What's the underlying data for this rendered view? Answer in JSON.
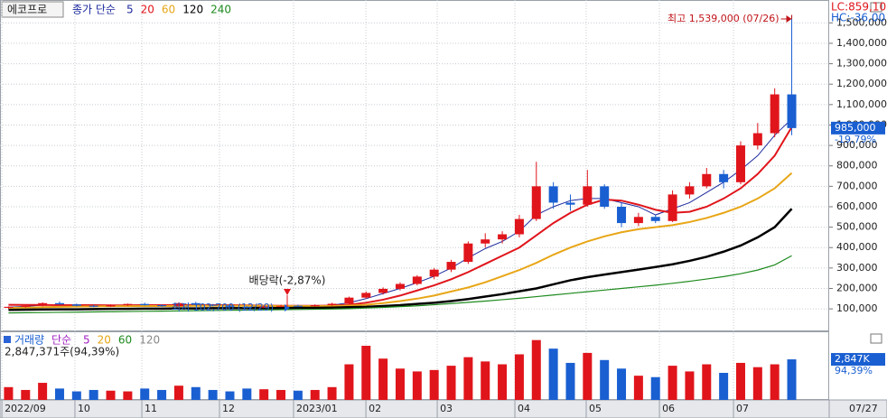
{
  "stock_name": "에코프로",
  "chart_data": [
    {
      "type": "candlestick",
      "legend_prefix": "종가 단순",
      "up_color": "#e0151b",
      "down_color": "#1a5fd1",
      "x": [
        0,
        1,
        2,
        3,
        4,
        5,
        6,
        7,
        8,
        9,
        10,
        11,
        12,
        13,
        14,
        15,
        16,
        17,
        18,
        19,
        20,
        21,
        22,
        23,
        24,
        25,
        26,
        27,
        28,
        29,
        30,
        31,
        32,
        33,
        34,
        35,
        36,
        37,
        38,
        39,
        40,
        41,
        42,
        43,
        44,
        45,
        46
      ],
      "open": [
        105000,
        110000,
        115000,
        128000,
        122000,
        115000,
        112000,
        118000,
        124000,
        118000,
        113000,
        128000,
        120000,
        116000,
        110000,
        106000,
        112000,
        115000,
        113000,
        118000,
        125000,
        155000,
        178000,
        198000,
        222000,
        258000,
        292000,
        330000,
        420000,
        440000,
        465000,
        540000,
        700000,
        620000,
        610000,
        700000,
        600000,
        520000,
        550000,
        530000,
        660000,
        700000,
        760000,
        720000,
        900000,
        960000,
        1150000
      ],
      "high": [
        112000,
        118000,
        132000,
        136000,
        126000,
        120000,
        122000,
        126000,
        130000,
        122000,
        132000,
        134000,
        124000,
        120000,
        114000,
        116000,
        120000,
        120000,
        122000,
        130000,
        160000,
        185000,
        205000,
        230000,
        265000,
        300000,
        340000,
        430000,
        470000,
        480000,
        560000,
        820000,
        720000,
        660000,
        780000,
        710000,
        620000,
        570000,
        560000,
        680000,
        720000,
        790000,
        780000,
        920000,
        1010000,
        1180000,
        1539000
      ],
      "low": [
        100000,
        106000,
        112000,
        120000,
        112000,
        108000,
        110000,
        114000,
        116000,
        110000,
        112000,
        118000,
        112000,
        108000,
        103000,
        104000,
        108000,
        110000,
        111000,
        115000,
        122000,
        150000,
        170000,
        190000,
        215000,
        245000,
        280000,
        320000,
        400000,
        420000,
        450000,
        530000,
        590000,
        580000,
        600000,
        590000,
        500000,
        505000,
        520000,
        525000,
        640000,
        690000,
        690000,
        710000,
        880000,
        940000,
        950000
      ],
      "close": [
        110000,
        115000,
        128000,
        122000,
        115000,
        112000,
        118000,
        124000,
        118000,
        113000,
        128000,
        120000,
        116000,
        110000,
        106000,
        112000,
        115000,
        113000,
        118000,
        125000,
        155000,
        178000,
        198000,
        222000,
        258000,
        292000,
        330000,
        420000,
        440000,
        465000,
        540000,
        700000,
        620000,
        610000,
        700000,
        600000,
        520000,
        550000,
        530000,
        660000,
        700000,
        760000,
        720000,
        900000,
        960000,
        1150000,
        985000
      ],
      "series": [
        {
          "name": "5",
          "color": "#1d2a9e",
          "width": 1,
          "values": [
            108000,
            112000,
            118000,
            120000,
            120000,
            118000,
            117000,
            118000,
            120000,
            119000,
            120000,
            122000,
            120000,
            117000,
            113000,
            110000,
            110000,
            112000,
            114000,
            118000,
            130000,
            150000,
            175000,
            200000,
            228000,
            260000,
            300000,
            350000,
            395000,
            430000,
            480000,
            560000,
            600000,
            630000,
            640000,
            640000,
            620000,
            600000,
            560000,
            590000,
            620000,
            670000,
            720000,
            780000,
            850000,
            950000,
            1030000
          ]
        },
        {
          "name": "20",
          "color": "#e0151b",
          "width": 2,
          "values": [
            120000,
            119000,
            119000,
            118000,
            118000,
            118000,
            117000,
            117000,
            118000,
            118000,
            118000,
            118000,
            118000,
            118000,
            117000,
            116000,
            115000,
            115000,
            115000,
            116000,
            120000,
            130000,
            145000,
            165000,
            190000,
            215000,
            245000,
            280000,
            320000,
            360000,
            400000,
            460000,
            520000,
            570000,
            610000,
            635000,
            630000,
            610000,
            585000,
            570000,
            575000,
            600000,
            640000,
            690000,
            760000,
            850000,
            990000
          ]
        },
        {
          "name": "60",
          "color": "#e8a617",
          "width": 2,
          "values": [
            105000,
            106000,
            108000,
            110000,
            111000,
            112000,
            113000,
            113000,
            114000,
            114000,
            114000,
            115000,
            115000,
            115000,
            115000,
            115000,
            114000,
            114000,
            114000,
            114000,
            116000,
            120000,
            128000,
            138000,
            150000,
            165000,
            185000,
            205000,
            230000,
            260000,
            290000,
            325000,
            365000,
            400000,
            430000,
            455000,
            475000,
            490000,
            500000,
            510000,
            525000,
            545000,
            570000,
            600000,
            640000,
            690000,
            765000
          ]
        },
        {
          "name": "120",
          "color": "#000000",
          "width": 2.5,
          "values": [
            95000,
            96000,
            97000,
            98000,
            98000,
            99000,
            100000,
            100000,
            101000,
            101000,
            102000,
            102000,
            103000,
            103000,
            104000,
            104000,
            104000,
            105000,
            105000,
            106000,
            108000,
            110000,
            114000,
            118000,
            124000,
            130000,
            138000,
            148000,
            160000,
            172000,
            186000,
            200000,
            220000,
            240000,
            255000,
            268000,
            280000,
            292000,
            305000,
            318000,
            335000,
            355000,
            380000,
            410000,
            450000,
            500000,
            590000
          ]
        },
        {
          "name": "240",
          "color": "#1e8a1e",
          "width": 1.2,
          "values": [
            80000,
            81000,
            82000,
            83000,
            84000,
            85000,
            86000,
            87000,
            88000,
            89000,
            90000,
            91000,
            92000,
            93000,
            94000,
            95000,
            96000,
            97000,
            98000,
            99000,
            101000,
            104000,
            107000,
            111000,
            115000,
            120000,
            126000,
            132000,
            138000,
            145000,
            152000,
            160000,
            168000,
            176000,
            184000,
            192000,
            200000,
            208000,
            216000,
            225000,
            235000,
            246000,
            258000,
            272000,
            290000,
            315000,
            360000
          ]
        }
      ],
      "xlim": [
        -0.5,
        48.2
      ],
      "ylim": [
        -10000,
        1612000
      ],
      "yticks": [
        {
          "value": 100000,
          "label": "100,000"
        },
        {
          "value": 200000,
          "label": "200,000"
        },
        {
          "value": 300000,
          "label": "300,000"
        },
        {
          "value": 400000,
          "label": "400,000"
        },
        {
          "value": 500000,
          "label": "500,000"
        },
        {
          "value": 600000,
          "label": "600,000"
        },
        {
          "value": 700000,
          "label": "700,000"
        },
        {
          "value": 800000,
          "label": "800,000"
        },
        {
          "value": 900000,
          "label": "900,000"
        },
        {
          "value": 1000000,
          "label": "1,000,000"
        },
        {
          "value": 1100000,
          "label": "1,100,000"
        },
        {
          "value": 1200000,
          "label": "1,200,000"
        },
        {
          "value": 1300000,
          "label": "1,300,000"
        },
        {
          "value": 1400000,
          "label": "1,400,000"
        },
        {
          "value": 1500000,
          "label": "1,500,000"
        }
      ],
      "xticks": [
        {
          "value": -0.39,
          "label": "2022/09"
        },
        {
          "value": 3.9,
          "label": "10"
        },
        {
          "value": 7.83,
          "label": "11"
        },
        {
          "value": 12.39,
          "label": "12"
        },
        {
          "value": 16.74,
          "label": "2023/01"
        },
        {
          "value": 20.99,
          "label": "02"
        },
        {
          "value": 25.18,
          "label": "03"
        },
        {
          "value": 29.74,
          "label": "04"
        },
        {
          "value": 33.93,
          "label": "05"
        },
        {
          "value": 38.23,
          "label": "06"
        },
        {
          "value": 42.58,
          "label": "07"
        }
      ],
      "last_date": "07/27",
      "grid": true,
      "high_label": "최고 1,539,000 (07/26)",
      "low_label": "최저 102,700 (12/29)",
      "dividend_label": "배당락(-2,87%)",
      "lc_label": "LC:859,10",
      "hc_label": "HC:-36,00",
      "last_price_label": "985,000",
      "change_label": "-19,79%"
    },
    {
      "type": "bar",
      "legend_title": "거래량",
      "legend_prefix": "단순",
      "legend_labels": [
        {
          "text": "5",
          "color": "#a020c0"
        },
        {
          "text": "20",
          "color": "#e8a617"
        },
        {
          "text": "60",
          "color": "#1e8a1e"
        },
        {
          "text": "120",
          "color": "#888888"
        }
      ],
      "volume_label": "2,847,371주(94,39%)",
      "last_volume_label": "2,847K",
      "ratio_label": "94,39%",
      "values": [
        900000,
        700000,
        1200000,
        800000,
        600000,
        700000,
        650000,
        600000,
        800000,
        700000,
        1000000,
        900000,
        700000,
        600000,
        800000,
        750000,
        700000,
        650000,
        700000,
        900000,
        2500000,
        3800000,
        2900000,
        2200000,
        2000000,
        2100000,
        2400000,
        3000000,
        2700000,
        2500000,
        3200000,
        4200000,
        3600000,
        2600000,
        3300000,
        2800000,
        2200000,
        1700000,
        1600000,
        2400000,
        2000000,
        2500000,
        1900000,
        2600000,
        2300000,
        2500000,
        2847371
      ],
      "ylim": [
        0,
        4750000
      ]
    }
  ]
}
